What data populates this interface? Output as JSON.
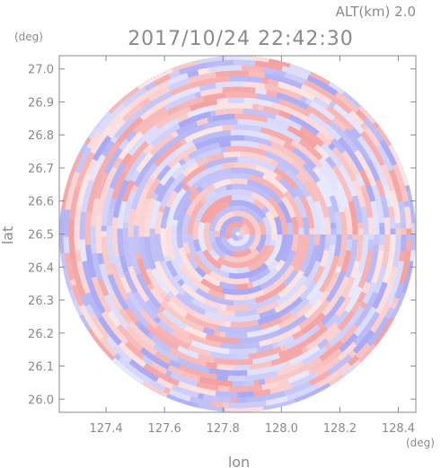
{
  "header": {
    "altitude_label": "ALT(km) 2.0",
    "timestamp": "2017/10/24 22:42:30"
  },
  "chart_data": {
    "type": "heatmap",
    "title": "2017/10/24 22:42:30",
    "xlabel": "lon",
    "ylabel": "lat",
    "x_unit": "(deg)",
    "y_unit": "(deg)",
    "xlim": [
      127.24,
      128.46
    ],
    "ylim": [
      25.96,
      27.04
    ],
    "x_ticks": [
      127.4,
      127.6,
      127.8,
      128.0,
      128.2,
      128.4
    ],
    "x_tick_labels": [
      "127.4",
      "127.6",
      "127.8",
      "128.0",
      "128.2",
      "128.4"
    ],
    "y_ticks": [
      26.0,
      26.1,
      26.2,
      26.3,
      26.4,
      26.5,
      26.6,
      26.7,
      26.8,
      26.9,
      27.0
    ],
    "y_tick_labels": [
      "26.0",
      "26.1",
      "26.2",
      "26.3",
      "26.4",
      "26.5",
      "26.6",
      "26.7",
      "26.8",
      "26.9",
      "27.0"
    ],
    "radar_center": {
      "lon": 127.85,
      "lat": 26.5
    },
    "radar_radius_deg_lat": 0.54,
    "colors": {
      "positive": "#f4a0a0",
      "negative": "#a8a8f4",
      "zero": "#ffffff",
      "axis": "#8a8a8a"
    }
  }
}
